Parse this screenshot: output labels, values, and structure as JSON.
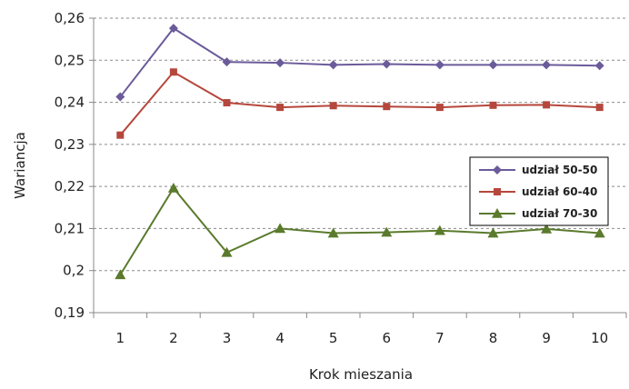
{
  "chart_data": {
    "type": "line",
    "xlabel": "Krok mieszania",
    "ylabel": "Wariancja",
    "x": [
      1,
      2,
      3,
      4,
      5,
      6,
      7,
      8,
      9,
      10
    ],
    "ylim": [
      0.19,
      0.26
    ],
    "ystep": 0.01,
    "grid": "horizontal-dashed",
    "legend_position": "right",
    "series": [
      {
        "name": "udział 50-50",
        "color": "#6B5B9A",
        "marker": "diamond",
        "values": [
          0.2413,
          0.2576,
          0.2496,
          0.2494,
          0.2489,
          0.2491,
          0.2489,
          0.2489,
          0.2489,
          0.2487
        ]
      },
      {
        "name": "udział 60-40",
        "color": "#B5473C",
        "marker": "square",
        "values": [
          0.2322,
          0.2472,
          0.2399,
          0.2388,
          0.2392,
          0.239,
          0.2388,
          0.2393,
          0.2394,
          0.2388
        ]
      },
      {
        "name": "udział 70-30",
        "color": "#5A7A2C",
        "marker": "triangle",
        "values": [
          0.199,
          0.2196,
          0.2043,
          0.21,
          0.2089,
          0.2091,
          0.2095,
          0.2089,
          0.2099,
          0.2089
        ]
      }
    ]
  }
}
